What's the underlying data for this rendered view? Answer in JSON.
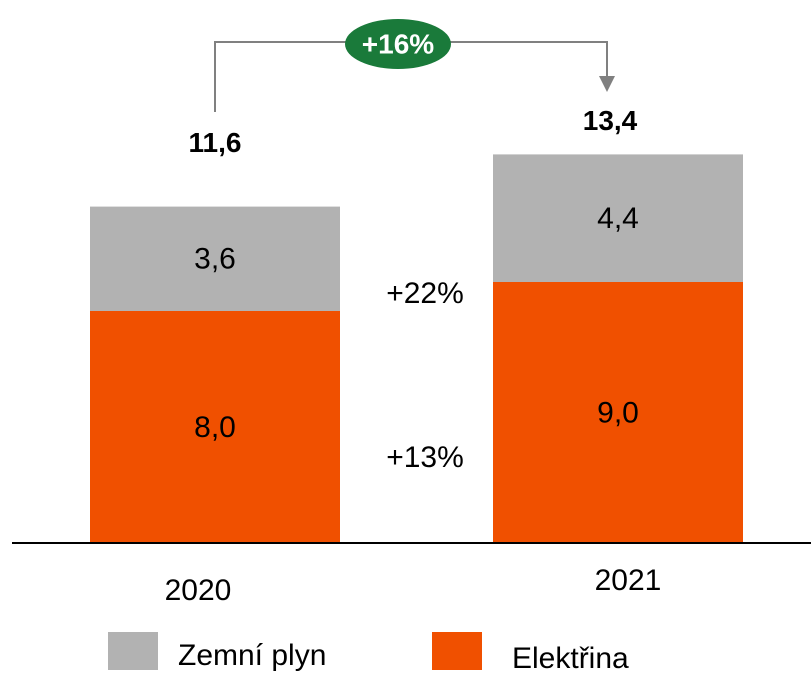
{
  "chart_data": {
    "type": "stacked_bar",
    "categories": [
      "2020",
      "2021"
    ],
    "series": [
      {
        "name": "Zemní plyn",
        "color": "#b2b2b2",
        "values": [
          3.6,
          4.4
        ],
        "value_labels": [
          "3,6",
          "4,4"
        ]
      },
      {
        "name": "Elektřina",
        "color": "#f05000",
        "values": [
          8.0,
          9.0
        ],
        "value_labels": [
          "8,0",
          "9,0"
        ]
      }
    ],
    "totals": [
      11.6,
      13.4
    ],
    "total_labels": [
      "11,6",
      "13,4"
    ],
    "annotations": [
      "+16%",
      "+22%",
      "+13%"
    ],
    "annotation_color": "#1a7a3a"
  }
}
